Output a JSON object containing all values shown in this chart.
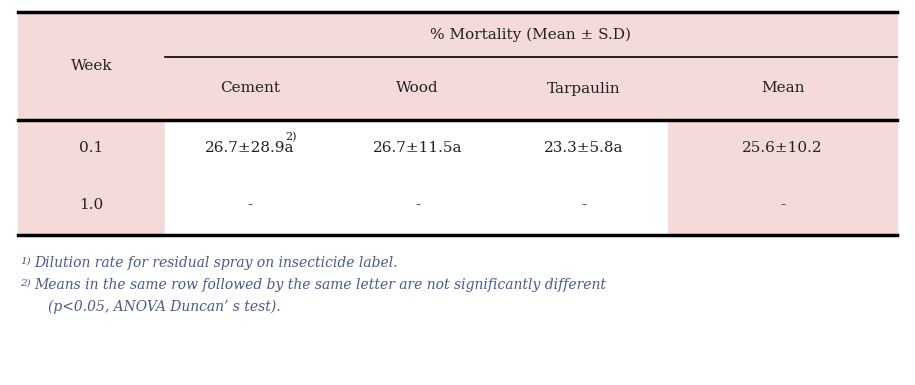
{
  "header_group": "% Mortality (Mean ± S.D)",
  "col_headers": [
    "Week",
    "Cement",
    "Wood",
    "Tarpaulin",
    "Mean"
  ],
  "row_data": [
    [
      "0.1",
      "26.7±28.9a",
      "2)",
      "26.7±11.5a",
      "23.3±5.8a",
      "25.6±10.2"
    ],
    [
      "1.0",
      "-",
      "",
      "-",
      "-",
      "-"
    ]
  ],
  "footnote1_super": "1)",
  "footnote1_text": "Dilution rate for residual spray on insecticide label.",
  "footnote2_super": "2)",
  "footnote2_text": "Means in the same row followed by the same letter are not significantly different",
  "footnote3_text": "(p<0.05, ANOVA Duncan’ s test).",
  "bg_pink": "#f5dada",
  "bg_white": "#ffffff",
  "text_dark": "#222222",
  "text_blue": "#4a5a8a",
  "font_size": 11,
  "footnote_font_size": 10
}
